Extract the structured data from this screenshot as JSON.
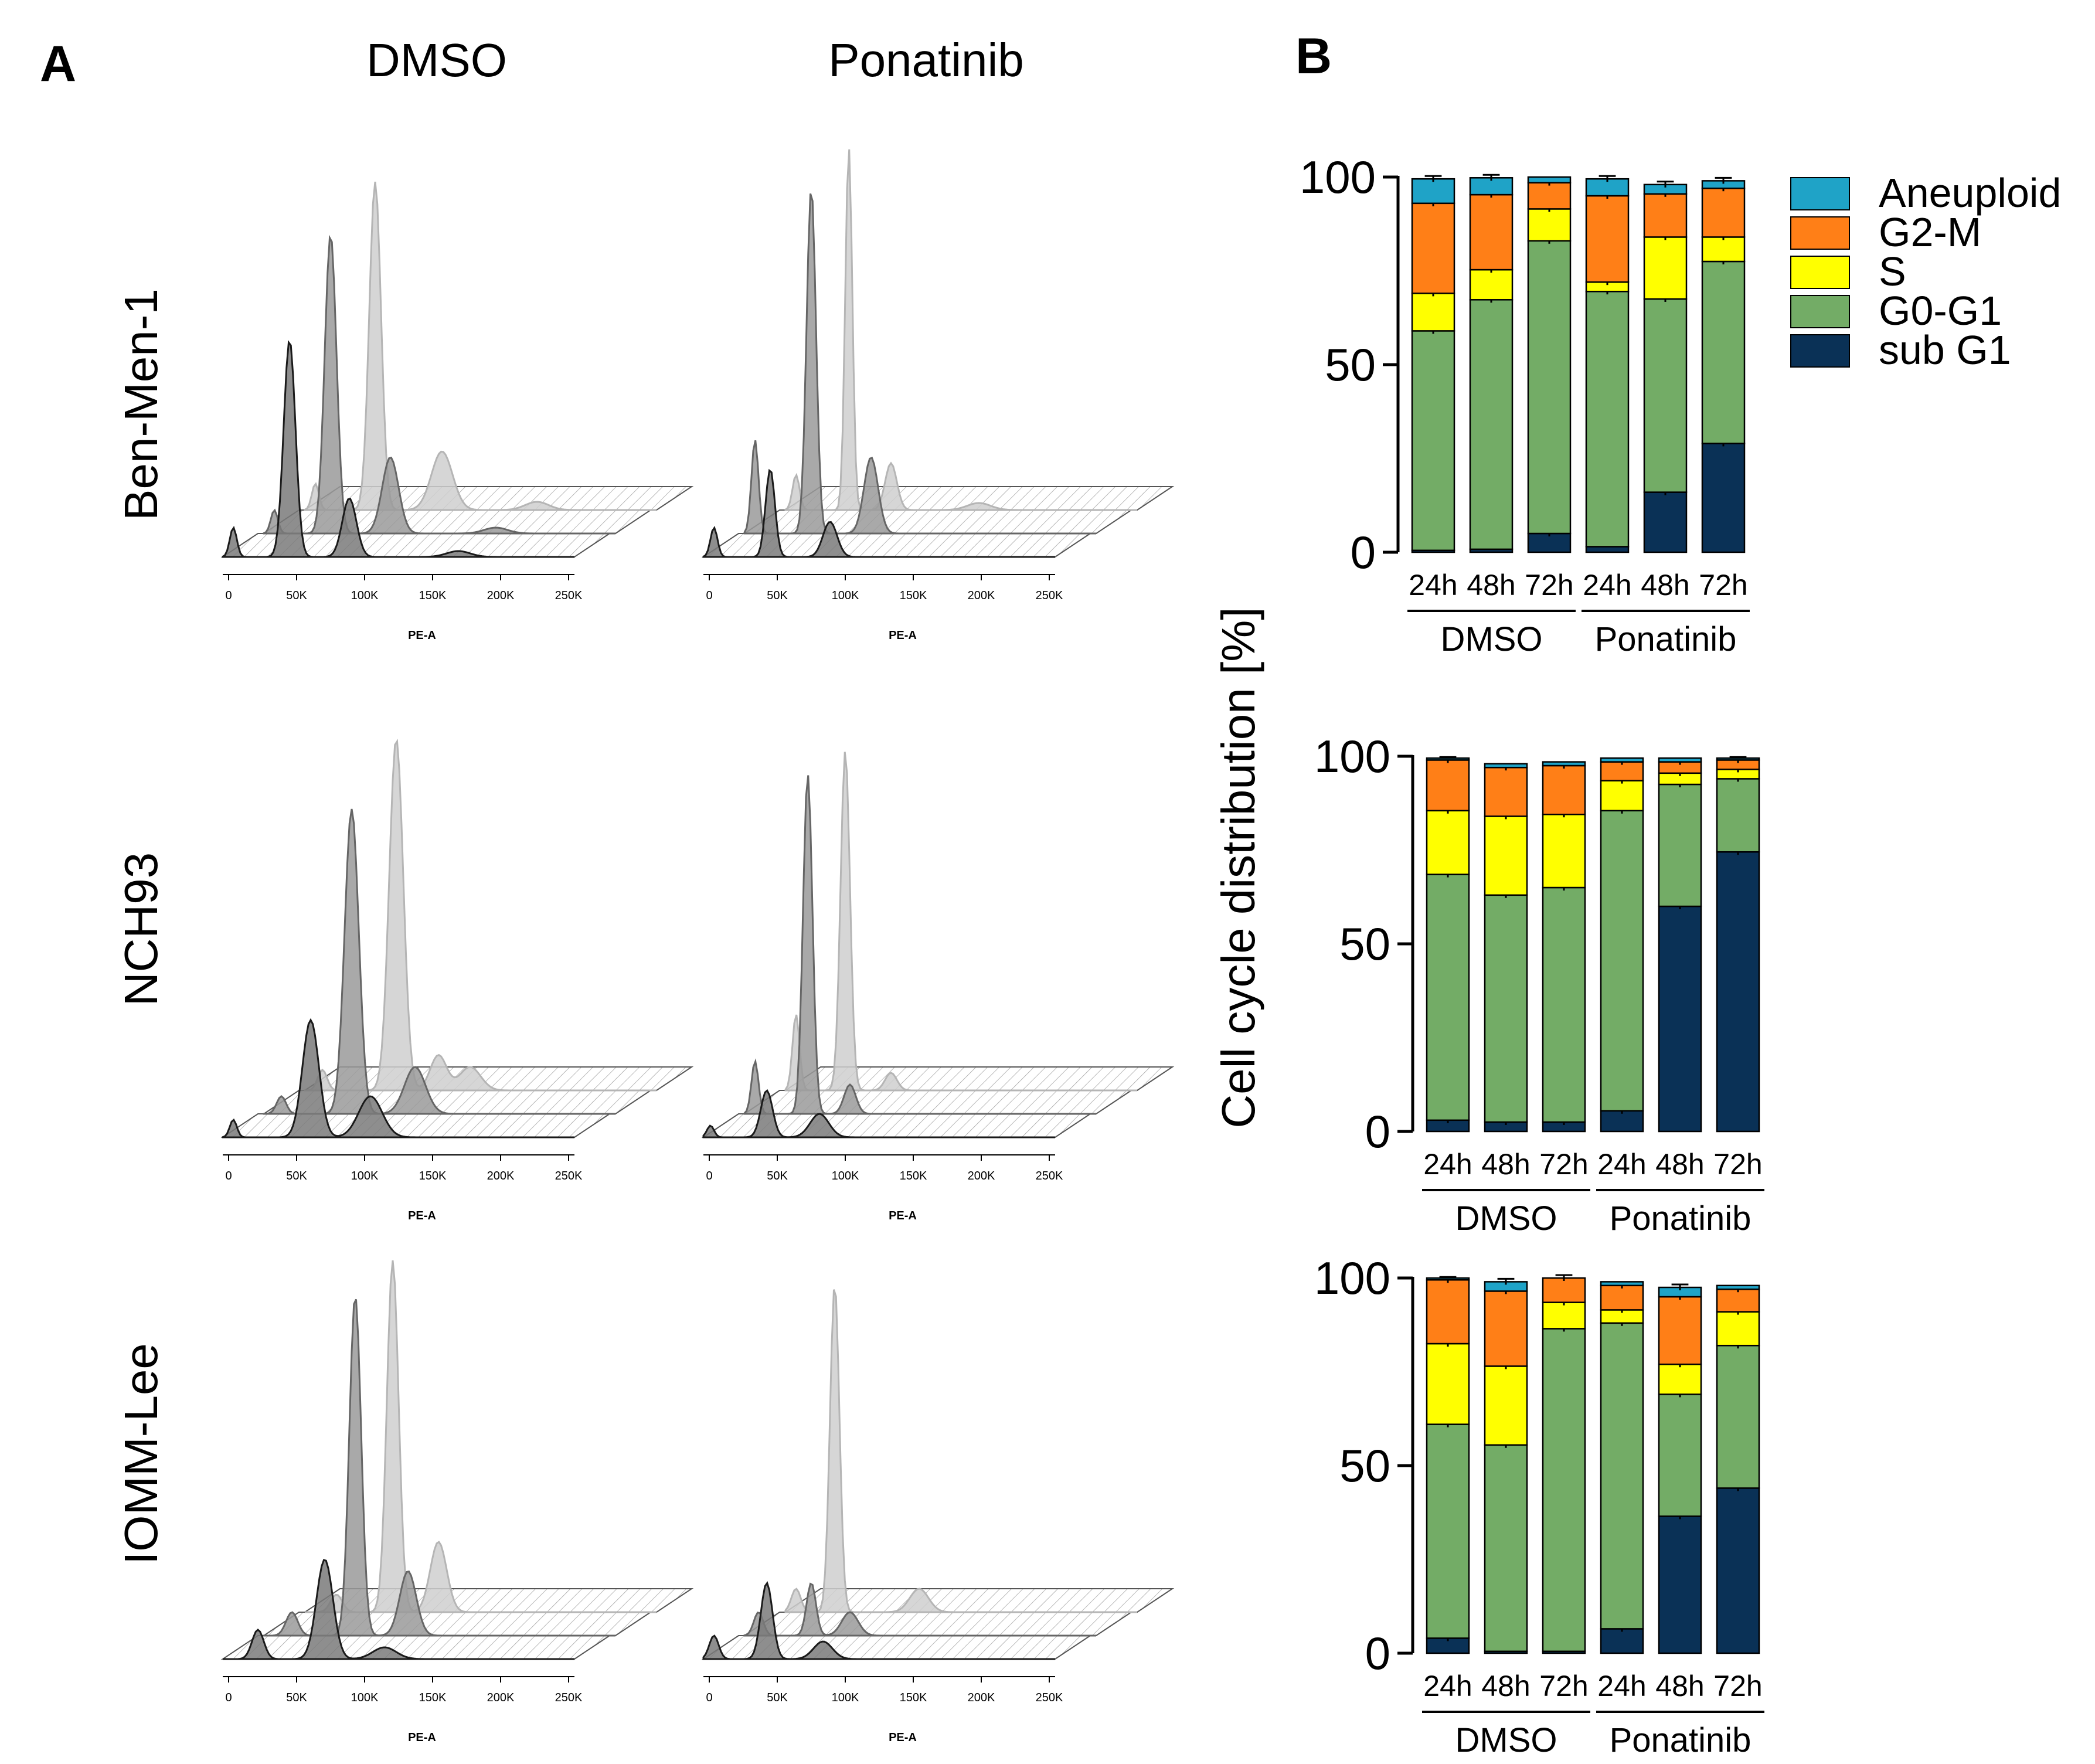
{
  "figure": {
    "panel_a_label": "A",
    "panel_b_label": "B",
    "column_headers": [
      "DMSO",
      "Ponatinib"
    ],
    "histogram_axis_ticks": [
      "0",
      "50K",
      "100K",
      "150K",
      "200K",
      "250K"
    ],
    "histogram_axis_label": "PE-A",
    "shared_y_label": "Cell cycle distribution [%]",
    "colors": {
      "Aneuploid": "#1FA3C7",
      "G2-M": "#FF7F17",
      "S": "#FFFF00",
      "G0-G1": "#73AC66",
      "sub G1": "#0A3156",
      "hist_dark": "#1a1a1a",
      "hist_mid": "#666666",
      "hist_light": "#b5b5b5"
    }
  },
  "cell_lines": [
    "Ben-Men-1",
    "NCH93",
    "IOMM-Lee"
  ],
  "legend": [
    "Aneuploid",
    "G2-M",
    "S",
    "G0-G1",
    "sub G1"
  ],
  "chart_data": [
    {
      "type": "bar",
      "stacked": true,
      "title": "Ben-Men-1",
      "categories": [
        "24h",
        "48h",
        "72h",
        "24h",
        "48h",
        "72h"
      ],
      "groups": [
        "DMSO",
        "Ponatinib"
      ],
      "ylabel": "Cell cycle distribution [%]",
      "ylim": [
        0,
        100
      ],
      "yticks": [
        0,
        50,
        100
      ],
      "series": [
        {
          "name": "sub G1",
          "values": [
            0.5,
            0.8,
            5,
            1.5,
            16,
            29
          ]
        },
        {
          "name": "G0-G1",
          "values": [
            58.5,
            66.5,
            78,
            68,
            51.5,
            48.5
          ]
        },
        {
          "name": "S",
          "values": [
            10,
            8,
            8.5,
            2.5,
            16.5,
            6.5
          ]
        },
        {
          "name": "G2-M",
          "values": [
            24,
            20,
            7,
            23,
            11.5,
            13
          ]
        },
        {
          "name": "Aneuploid",
          "values": [
            6.5,
            4.5,
            1.5,
            4.5,
            2.5,
            2
          ]
        }
      ]
    },
    {
      "type": "bar",
      "stacked": true,
      "title": "NCH93",
      "categories": [
        "24h",
        "48h",
        "72h",
        "24h",
        "48h",
        "72h"
      ],
      "groups": [
        "DMSO",
        "Ponatinib"
      ],
      "ylabel": "Cell cycle distribution [%]",
      "ylim": [
        0,
        100
      ],
      "yticks": [
        0,
        50,
        100
      ],
      "series": [
        {
          "name": "sub G1",
          "values": [
            3,
            2.5,
            2.5,
            5.5,
            60,
            74.5
          ]
        },
        {
          "name": "G0-G1",
          "values": [
            65.5,
            60.5,
            62.5,
            80,
            32.5,
            19.5
          ]
        },
        {
          "name": "S",
          "values": [
            17,
            21,
            19.5,
            8,
            3,
            2.5
          ]
        },
        {
          "name": "G2-M",
          "values": [
            13.5,
            13,
            13,
            5,
            3,
            2.5
          ]
        },
        {
          "name": "Aneuploid",
          "values": [
            0.5,
            1,
            1,
            1,
            1,
            0.5
          ]
        }
      ]
    },
    {
      "type": "bar",
      "stacked": true,
      "title": "IOMM-Lee",
      "categories": [
        "24h",
        "48h",
        "72h",
        "24h",
        "48h",
        "72h"
      ],
      "groups": [
        "DMSO",
        "Ponatinib"
      ],
      "ylabel": "Cell cycle distribution [%]",
      "ylim": [
        0,
        100
      ],
      "yticks": [
        0,
        50,
        100
      ],
      "series": [
        {
          "name": "sub G1",
          "values": [
            4,
            0.5,
            0.5,
            6.5,
            36.5,
            44
          ]
        },
        {
          "name": "G0-G1",
          "values": [
            57,
            55,
            86,
            81.5,
            32.5,
            38
          ]
        },
        {
          "name": "S",
          "values": [
            21.5,
            21,
            7,
            3.5,
            8,
            9
          ]
        },
        {
          "name": "G2-M",
          "values": [
            17,
            20,
            6.5,
            6.5,
            18,
            6
          ]
        },
        {
          "name": "Aneuploid",
          "values": [
            0.5,
            2.5,
            0,
            1,
            2.5,
            1
          ]
        }
      ]
    }
  ]
}
